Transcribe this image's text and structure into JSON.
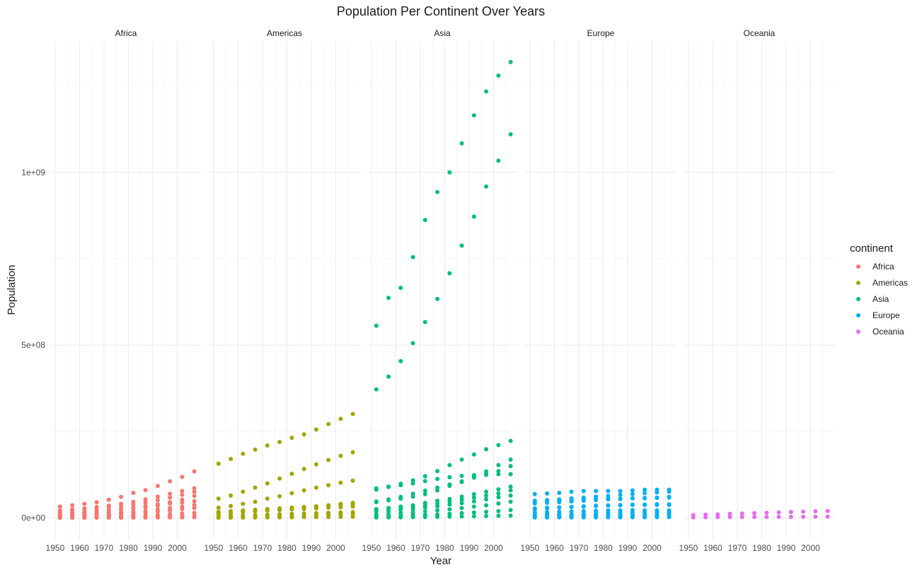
{
  "chart_data": {
    "type": "scatter",
    "title": "Population Per Continent Over Years",
    "xlabel": "Year",
    "ylabel": "Population",
    "facet_by": "continent",
    "facets": [
      "Africa",
      "Americas",
      "Asia",
      "Europe",
      "Oceania"
    ],
    "xlim": [
      1948,
      2010
    ],
    "ylim": [
      -60000000,
      1380000000
    ],
    "x_ticks": [
      1950,
      1960,
      1970,
      1980,
      1990,
      2000
    ],
    "x_tick_labels": [
      "1950",
      "1960",
      "1970",
      "1980",
      "1990",
      "2000"
    ],
    "y_ticks": [
      0,
      500000000,
      1000000000
    ],
    "y_tick_labels": [
      "0e+00",
      "5e+08",
      "1e+09"
    ],
    "grid": true,
    "legend": {
      "title": "continent",
      "position": "right",
      "entries": [
        "Africa",
        "Americas",
        "Asia",
        "Europe",
        "Oceania"
      ]
    },
    "colors": {
      "Africa": "#F8766D",
      "Americas": "#A3A500",
      "Asia": "#00BF7D",
      "Europe": "#00B0F6",
      "Oceania": "#E76BF3"
    },
    "years": [
      1952,
      1957,
      1962,
      1967,
      1972,
      1977,
      1982,
      1987,
      1992,
      1997,
      2002,
      2007
    ],
    "series": [
      {
        "name": "Africa",
        "countries": [
          [
            22000000,
            25000000,
            28000000,
            32000000,
            36000000,
            41000000,
            47000000,
            54000000,
            62000000,
            70000000,
            78000000,
            86000000
          ],
          [
            33000000,
            37000000,
            41000000,
            46000000,
            53000000,
            61000000,
            73000000,
            81000000,
            93000000,
            106000000,
            119000000,
            135000000
          ],
          [
            20000000,
            22000000,
            25000000,
            28000000,
            32000000,
            35000000,
            40000000,
            45000000,
            52000000,
            59000000,
            67000000,
            76000000
          ],
          [
            14000000,
            16000000,
            18000000,
            20000000,
            23000000,
            26000000,
            30000000,
            35000000,
            40000000,
            46000000,
            53000000,
            64000000
          ],
          [
            12000000,
            14000000,
            16000000,
            18000000,
            21000000,
            24000000,
            28000000,
            31000000,
            36000000,
            42000000,
            45000000,
            49000000
          ],
          [
            9000000,
            10000000,
            11000000,
            12000000,
            14000000,
            16000000,
            18000000,
            21000000,
            25000000,
            29000000,
            33000000,
            38000000
          ],
          [
            6000000,
            7000000,
            8000000,
            9000000,
            10000000,
            12000000,
            14000000,
            16000000,
            19000000,
            22000000,
            26000000,
            29000000
          ],
          [
            3000000,
            3500000,
            4000000,
            4500000,
            5000000,
            6000000,
            7000000,
            8000000,
            9500000,
            11000000,
            13000000,
            15000000
          ],
          [
            1500000,
            1700000,
            1900000,
            2100000,
            2400000,
            2800000,
            3200000,
            3700000,
            4200000,
            4800000,
            5500000,
            6200000
          ],
          [
            500000,
            600000,
            700000,
            800000,
            900000,
            1000000,
            1200000,
            1400000,
            1600000,
            1800000,
            2000000,
            2300000
          ]
        ]
      },
      {
        "name": "Americas",
        "countries": [
          [
            157000000,
            171000000,
            186000000,
            198000000,
            210000000,
            220000000,
            232000000,
            242000000,
            256000000,
            272000000,
            287000000,
            301000000
          ],
          [
            56000000,
            65000000,
            76000000,
            88000000,
            100000000,
            114000000,
            128000000,
            142000000,
            155000000,
            168000000,
            180000000,
            190000000
          ],
          [
            30000000,
            35000000,
            41000000,
            47000000,
            56000000,
            63000000,
            72000000,
            80000000,
            88000000,
            95000000,
            102000000,
            108000000
          ],
          [
            18000000,
            20000000,
            22000000,
            24000000,
            26000000,
            28000000,
            30000000,
            32000000,
            34000000,
            36000000,
            38000000,
            40000000
          ],
          [
            12000000,
            14000000,
            17000000,
            19000000,
            22000000,
            25000000,
            27000000,
            30000000,
            33000000,
            37000000,
            41000000,
            44000000
          ],
          [
            14000000,
            16000000,
            18000000,
            20000000,
            22000000,
            23000000,
            25000000,
            26000000,
            28000000,
            30000000,
            31000000,
            33000000
          ],
          [
            6000000,
            7000000,
            8000000,
            9000000,
            10000000,
            11000000,
            12000000,
            13000000,
            14000000,
            15000000,
            16000000,
            17000000
          ],
          [
            3000000,
            3500000,
            4000000,
            4500000,
            5000000,
            5500000,
            6000000,
            7000000,
            8000000,
            9000000,
            10000000,
            11000000
          ],
          [
            1000000,
            1200000,
            1400000,
            1600000,
            1800000,
            2000000,
            2200000,
            2500000,
            2800000,
            3100000,
            3400000,
            3700000
          ]
        ]
      },
      {
        "name": "Asia",
        "countries": [
          [
            556000000,
            637000000,
            666000000,
            755000000,
            862000000,
            943000000,
            1000000000,
            1084000000,
            1165000000,
            1234000000,
            1280000000,
            1319000000
          ],
          [
            372000000,
            409000000,
            454000000,
            506000000,
            567000000,
            634000000,
            708000000,
            788000000,
            872000000,
            959000000,
            1034000000,
            1110000000
          ],
          [
            86000000,
            91000000,
            95000000,
            100000000,
            107000000,
            113000000,
            118000000,
            122000000,
            124000000,
            125000000,
            127000000,
            127000000
          ],
          [
            82000000,
            90000000,
            99000000,
            109000000,
            121000000,
            136000000,
            153000000,
            169000000,
            184000000,
            199000000,
            211000000,
            223000000
          ],
          [
            46000000,
            51000000,
            56000000,
            62000000,
            69000000,
            80000000,
            93000000,
            104000000,
            120000000,
            135000000,
            153000000,
            169000000
          ],
          [
            48000000,
            54000000,
            61000000,
            70000000,
            79000000,
            88000000,
            97000000,
            106000000,
            117000000,
            127000000,
            136000000,
            150000000
          ],
          [
            26000000,
            29000000,
            33000000,
            37000000,
            44000000,
            50000000,
            55000000,
            62000000,
            69000000,
            76000000,
            83000000,
            91000000
          ],
          [
            22000000,
            25000000,
            28000000,
            32000000,
            37000000,
            42000000,
            47000000,
            53000000,
            59000000,
            65000000,
            71000000,
            80000000
          ],
          [
            18000000,
            20000000,
            23000000,
            26000000,
            30000000,
            34000000,
            39000000,
            43000000,
            48000000,
            54000000,
            60000000,
            65000000
          ],
          [
            10000000,
            12000000,
            14000000,
            16000000,
            19000000,
            22000000,
            25000000,
            29000000,
            33000000,
            37000000,
            42000000,
            47000000
          ],
          [
            5000000,
            6000000,
            7000000,
            8000000,
            9000000,
            10000000,
            12000000,
            14000000,
            16000000,
            18000000,
            20000000,
            23000000
          ],
          [
            1500000,
            1800000,
            2100000,
            2500000,
            3000000,
            3500000,
            4000000,
            4600000,
            5200000,
            5800000,
            6400000,
            7000000
          ]
        ]
      },
      {
        "name": "Europe",
        "countries": [
          [
            69000000,
            71000000,
            73000000,
            76000000,
            78000000,
            78000000,
            78000000,
            78000000,
            80000000,
            82000000,
            82000000,
            82000000
          ],
          [
            50000000,
            52000000,
            54000000,
            57000000,
            59000000,
            62000000,
            64000000,
            67000000,
            69000000,
            72000000,
            74000000,
            76000000
          ],
          [
            48000000,
            49000000,
            51000000,
            52000000,
            54000000,
            56000000,
            56000000,
            56000000,
            57000000,
            57000000,
            58000000,
            59000000
          ],
          [
            42000000,
            44000000,
            46000000,
            48000000,
            50000000,
            52000000,
            54000000,
            55000000,
            57000000,
            58000000,
            59000000,
            61000000
          ],
          [
            28000000,
            30000000,
            31000000,
            32000000,
            34000000,
            36000000,
            37000000,
            38000000,
            39000000,
            39000000,
            40000000,
            40000000
          ],
          [
            25000000,
            28000000,
            30000000,
            32000000,
            33000000,
            35000000,
            36000000,
            37000000,
            38000000,
            38000000,
            38000000,
            38000000
          ],
          [
            16000000,
            17000000,
            18000000,
            19000000,
            20000000,
            21000000,
            22000000,
            22000000,
            23000000,
            22000000,
            22000000,
            22000000
          ],
          [
            10000000,
            11000000,
            11000000,
            12000000,
            13000000,
            14000000,
            14000000,
            15000000,
            15000000,
            15000000,
            16000000,
            16000000
          ],
          [
            7000000,
            7500000,
            8000000,
            8300000,
            8700000,
            9000000,
            9300000,
            9600000,
            9900000,
            10200000,
            10400000,
            10700000
          ],
          [
            4000000,
            4200000,
            4400000,
            4600000,
            4800000,
            5000000,
            5100000,
            5200000,
            5300000,
            5400000,
            5500000,
            5600000
          ],
          [
            1500000,
            1600000,
            1700000,
            1800000,
            1900000,
            2000000,
            2100000,
            2200000,
            2300000,
            2400000,
            2500000,
            2600000
          ]
        ]
      },
      {
        "name": "Oceania",
        "countries": [
          [
            8700000,
            9700000,
            10800000,
            11900000,
            13200000,
            14100000,
            15200000,
            16300000,
            17500000,
            18600000,
            19500000,
            20400000
          ],
          [
            1990000,
            2140000,
            2490000,
            2730000,
            2930000,
            3160000,
            3210000,
            3320000,
            3440000,
            3680000,
            3910000,
            4120000
          ]
        ]
      }
    ]
  }
}
